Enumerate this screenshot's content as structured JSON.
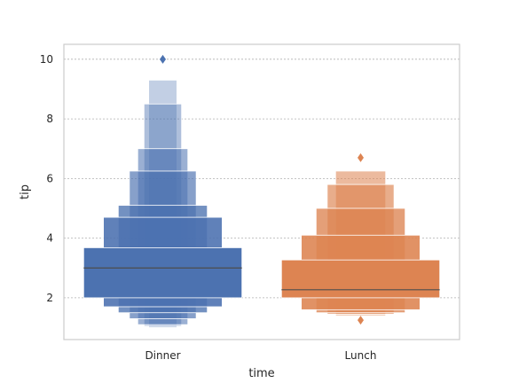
{
  "chart_data": {
    "type": "boxen",
    "xlabel": "time",
    "ylabel": "tip",
    "ylim": [
      0.6,
      10.5
    ],
    "yticks": [
      2,
      4,
      6,
      8,
      10
    ],
    "grid": "y-dashed",
    "categories": [
      "Dinner",
      "Lunch"
    ],
    "colors": {
      "Dinner": "#4c72b0",
      "Lunch": "#dd8452",
      "median": "#4d4d4d",
      "frame": "#cccccc",
      "grid": "#b0b0b0"
    },
    "groups": [
      {
        "name": "Dinner",
        "median": 3.0,
        "boxes": [
          {
            "level": 1,
            "low": 2.0,
            "high": 3.68
          },
          {
            "level": 2,
            "low": 1.7,
            "high": 4.7
          },
          {
            "level": 3,
            "low": 1.5,
            "high": 5.1
          },
          {
            "level": 4,
            "low": 1.3,
            "high": 6.25
          },
          {
            "level": 5,
            "low": 1.1,
            "high": 7.0
          },
          {
            "level": 6,
            "low": 1.05,
            "high": 8.5
          },
          {
            "level": 7,
            "low": 1.0,
            "high": 9.3
          }
        ],
        "outliers": [
          10.0
        ]
      },
      {
        "name": "Lunch",
        "median": 2.27,
        "boxes": [
          {
            "level": 1,
            "low": 2.0,
            "high": 3.27
          },
          {
            "level": 2,
            "low": 1.6,
            "high": 4.1
          },
          {
            "level": 3,
            "low": 1.5,
            "high": 5.0
          },
          {
            "level": 4,
            "low": 1.45,
            "high": 5.8
          },
          {
            "level": 5,
            "low": 1.4,
            "high": 6.25
          }
        ],
        "outliers": [
          6.7,
          1.25
        ]
      }
    ]
  }
}
